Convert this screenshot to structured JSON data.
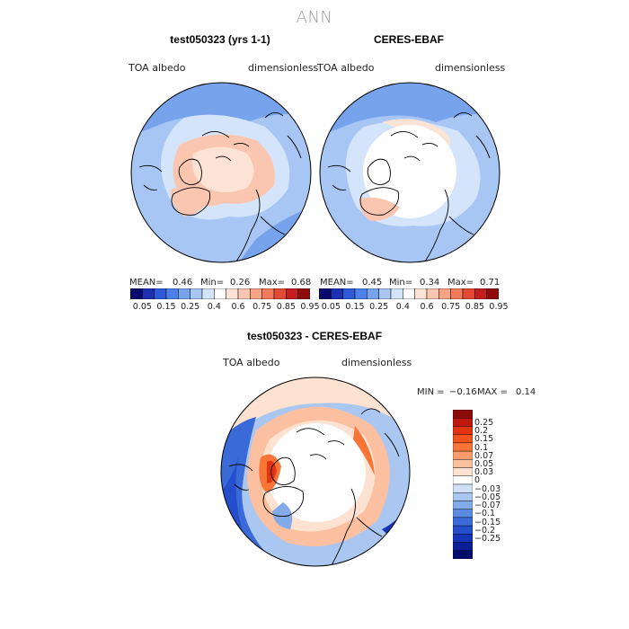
{
  "title": "ANN",
  "panels": [
    {
      "title": "test050323 (yrs 1-1)",
      "var_label": "TOA albedo",
      "units": "dimensionless",
      "mean_label": "MEAN=",
      "mean": "0.46",
      "min_label": "Min=",
      "min": "0.26",
      "max_label": "Max=",
      "max": "0.68"
    },
    {
      "title": "CERES-EBAF",
      "var_label": "TOA albedo",
      "units": "dimensionless",
      "mean_label": "MEAN=",
      "mean": "0.45",
      "min_label": "Min=",
      "min": "0.34",
      "max_label": "Max=",
      "max": "0.71"
    }
  ],
  "top_colorbar": {
    "labels": [
      "0.05",
      "0.15",
      "0.25",
      "0.4",
      "0.6",
      "0.75",
      "0.85",
      "0.95"
    ],
    "colors": [
      "#0a0a6e",
      "#1d2fb3",
      "#2e59d9",
      "#4d80e8",
      "#77a2ec",
      "#a8c6f3",
      "#d4e4fa",
      "#ffffff",
      "#fde3d5",
      "#fbc6b0",
      "#f8a384",
      "#f37a5c",
      "#e34a36",
      "#c41e1e",
      "#8e0c0c"
    ]
  },
  "diff_panel": {
    "title": "test050323 - CERES-EBAF",
    "var_label": "TOA albedo",
    "units": "dimensionless",
    "min_label": "MIN =",
    "min": "−0.16",
    "max_label": "MAX =",
    "max": "0.14"
  },
  "diff_colorbar": {
    "labels": [
      "0.25",
      "0.2",
      "0.15",
      "0.1",
      "0.07",
      "0.05",
      "0.03",
      "0",
      "−0.03",
      "−0.05",
      "−0.07",
      "−0.1",
      "−0.15",
      "−0.2",
      "−0.25"
    ],
    "colors": [
      "#8b0a0a",
      "#c0180f",
      "#e03413",
      "#f0531e",
      "#f77537",
      "#fb9d6a",
      "#fcc0a1",
      "#fde2d2",
      "#ffffff",
      "#cfe0f7",
      "#aac7f1",
      "#83abe9",
      "#5a8ae2",
      "#3a6ad8",
      "#244ecb",
      "#1435b8",
      "#0a1e98",
      "#030c6b"
    ]
  }
}
